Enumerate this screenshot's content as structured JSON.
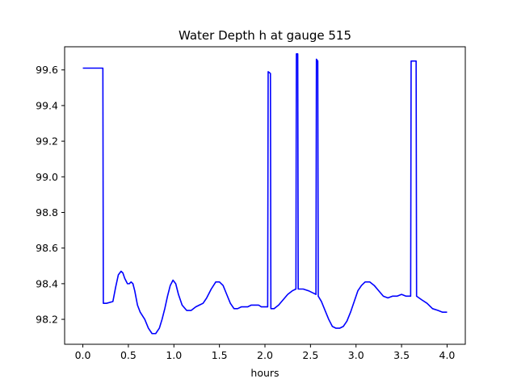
{
  "chart_data": {
    "type": "line",
    "title": "Water Depth h at gauge 515",
    "xlabel": "hours",
    "ylabel": "",
    "xlim": [
      -0.2,
      4.2
    ],
    "ylim": [
      98.06,
      99.73
    ],
    "grid": false,
    "line_color": "#0000ff",
    "xticks": [
      {
        "value": 0.0,
        "label": "0.0"
      },
      {
        "value": 0.5,
        "label": "0.5"
      },
      {
        "value": 1.0,
        "label": "1.0"
      },
      {
        "value": 1.5,
        "label": "1.5"
      },
      {
        "value": 2.0,
        "label": "2.0"
      },
      {
        "value": 2.5,
        "label": "2.5"
      },
      {
        "value": 3.0,
        "label": "3.0"
      },
      {
        "value": 3.5,
        "label": "3.5"
      },
      {
        "value": 4.0,
        "label": "4.0"
      }
    ],
    "yticks": [
      {
        "value": 98.2,
        "label": "98.2"
      },
      {
        "value": 98.4,
        "label": "98.4"
      },
      {
        "value": 98.6,
        "label": "98.6"
      },
      {
        "value": 98.8,
        "label": "98.8"
      },
      {
        "value": 99.0,
        "label": "99.0"
      },
      {
        "value": 99.2,
        "label": "99.2"
      },
      {
        "value": 99.4,
        "label": "99.4"
      },
      {
        "value": 99.6,
        "label": "99.6"
      }
    ],
    "series": [
      {
        "x": [
          0.0,
          0.22,
          0.225,
          0.26,
          0.33,
          0.36,
          0.39,
          0.42,
          0.44,
          0.46,
          0.49,
          0.51,
          0.53,
          0.55,
          0.57,
          0.6,
          0.63,
          0.68,
          0.72,
          0.76,
          0.8,
          0.84,
          0.87,
          0.9,
          0.93,
          0.96,
          0.99,
          1.02,
          1.05,
          1.09,
          1.14,
          1.19,
          1.24,
          1.28,
          1.32,
          1.36,
          1.41,
          1.46,
          1.5,
          1.54,
          1.58,
          1.62,
          1.66,
          1.7,
          1.74,
          1.78,
          1.81,
          1.85,
          1.89,
          1.93,
          1.96,
          2.0,
          2.03,
          2.035,
          2.06,
          2.065,
          2.1,
          2.15,
          2.2,
          2.25,
          2.3,
          2.34,
          2.345,
          2.36,
          2.365,
          2.42,
          2.48,
          2.52,
          2.56,
          2.565,
          2.58,
          2.585,
          2.62,
          2.66,
          2.7,
          2.74,
          2.78,
          2.82,
          2.86,
          2.9,
          2.94,
          2.98,
          3.02,
          3.06,
          3.1,
          3.15,
          3.2,
          3.25,
          3.3,
          3.35,
          3.4,
          3.45,
          3.5,
          3.55,
          3.6,
          3.605,
          3.66,
          3.665,
          3.72,
          3.78,
          3.84,
          3.9,
          3.95,
          4.0
        ],
        "y": [
          99.61,
          99.61,
          98.29,
          98.29,
          98.3,
          98.38,
          98.45,
          98.47,
          98.46,
          98.43,
          98.4,
          98.4,
          98.41,
          98.4,
          98.36,
          98.28,
          98.24,
          98.2,
          98.15,
          98.12,
          98.12,
          98.15,
          98.2,
          98.26,
          98.33,
          98.39,
          98.42,
          98.4,
          98.34,
          98.28,
          98.25,
          98.25,
          98.27,
          98.28,
          98.29,
          98.32,
          98.37,
          98.41,
          98.41,
          98.39,
          98.34,
          98.29,
          98.26,
          98.26,
          98.27,
          98.27,
          98.27,
          98.28,
          98.28,
          98.28,
          98.27,
          98.27,
          98.27,
          99.59,
          99.58,
          98.26,
          98.26,
          98.28,
          98.31,
          98.34,
          98.36,
          98.37,
          99.69,
          99.69,
          98.37,
          98.37,
          98.36,
          98.35,
          98.34,
          99.66,
          99.65,
          98.33,
          98.3,
          98.25,
          98.2,
          98.16,
          98.15,
          98.15,
          98.16,
          98.19,
          98.24,
          98.3,
          98.36,
          98.39,
          98.41,
          98.41,
          98.39,
          98.36,
          98.33,
          98.32,
          98.33,
          98.33,
          98.34,
          98.33,
          98.33,
          99.65,
          99.65,
          98.33,
          98.31,
          98.29,
          98.26,
          98.25,
          98.24,
          98.24
        ]
      }
    ]
  }
}
